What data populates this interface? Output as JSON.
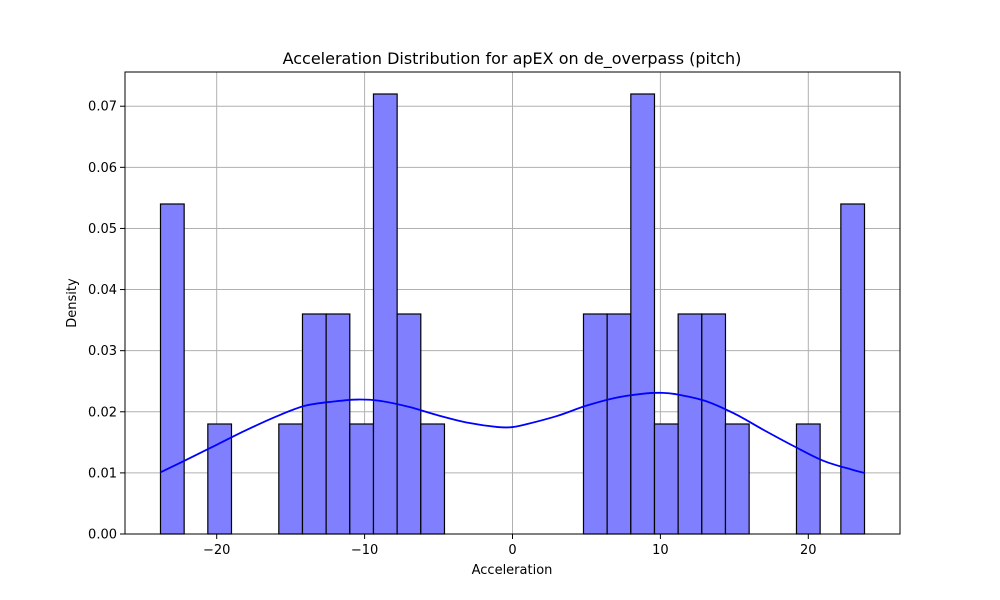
{
  "chart_data": {
    "type": "bar",
    "title": "Acceleration Distribution for apEX on de_overpass (pitch)",
    "xlabel": "Acceleration",
    "ylabel": "Density",
    "xlim": [
      -26.2,
      26.2
    ],
    "ylim": [
      0,
      0.0756
    ],
    "xticks": [
      -20,
      -10,
      0,
      10,
      20
    ],
    "yticks": [
      0.0,
      0.01,
      0.02,
      0.03,
      0.04,
      0.05,
      0.06,
      0.07
    ],
    "xtick_labels": [
      "−20",
      "−10",
      "0",
      "10",
      "20"
    ],
    "ytick_labels": [
      "0.00",
      "0.01",
      "0.02",
      "0.03",
      "0.04",
      "0.05",
      "0.06",
      "0.07"
    ],
    "grid": true,
    "bar_color": "#8080ff",
    "bar_edge_color": "#000000",
    "kde_color": "#0000ff",
    "bins": [
      {
        "x0": -23.8,
        "x1": -22.2,
        "density": 0.054
      },
      {
        "x0": -20.6,
        "x1": -19.0,
        "density": 0.018
      },
      {
        "x0": -15.8,
        "x1": -14.2,
        "density": 0.018
      },
      {
        "x0": -14.2,
        "x1": -12.6,
        "density": 0.036
      },
      {
        "x0": -12.6,
        "x1": -11.0,
        "density": 0.036
      },
      {
        "x0": -11.0,
        "x1": -9.4,
        "density": 0.018
      },
      {
        "x0": -9.4,
        "x1": -7.8,
        "density": 0.072
      },
      {
        "x0": -7.8,
        "x1": -6.2,
        "density": 0.036
      },
      {
        "x0": -6.2,
        "x1": -4.6,
        "density": 0.018
      },
      {
        "x0": 4.8,
        "x1": 6.4,
        "density": 0.036
      },
      {
        "x0": 6.4,
        "x1": 8.0,
        "density": 0.036
      },
      {
        "x0": 8.0,
        "x1": 9.6,
        "density": 0.072
      },
      {
        "x0": 9.6,
        "x1": 11.2,
        "density": 0.018
      },
      {
        "x0": 11.2,
        "x1": 12.8,
        "density": 0.036
      },
      {
        "x0": 12.8,
        "x1": 14.4,
        "density": 0.036
      },
      {
        "x0": 14.4,
        "x1": 16.0,
        "density": 0.018
      },
      {
        "x0": 19.2,
        "x1": 20.8,
        "density": 0.018
      },
      {
        "x0": 22.2,
        "x1": 23.8,
        "density": 0.054
      }
    ],
    "kde": {
      "x": [
        -23.8,
        -22,
        -20,
        -18,
        -16,
        -14,
        -12,
        -10.5,
        -9,
        -7,
        -5,
        -3,
        -1,
        0,
        1,
        3,
        5,
        7,
        9,
        10,
        11,
        13,
        15,
        17,
        19,
        21,
        23,
        23.8
      ],
      "y": [
        0.0101,
        0.0122,
        0.0146,
        0.017,
        0.0192,
        0.021,
        0.0217,
        0.022,
        0.0218,
        0.0208,
        0.0194,
        0.0182,
        0.0175,
        0.0175,
        0.018,
        0.0193,
        0.021,
        0.0223,
        0.023,
        0.0231,
        0.0229,
        0.0218,
        0.0197,
        0.017,
        0.0144,
        0.012,
        0.0105,
        0.01
      ]
    }
  }
}
